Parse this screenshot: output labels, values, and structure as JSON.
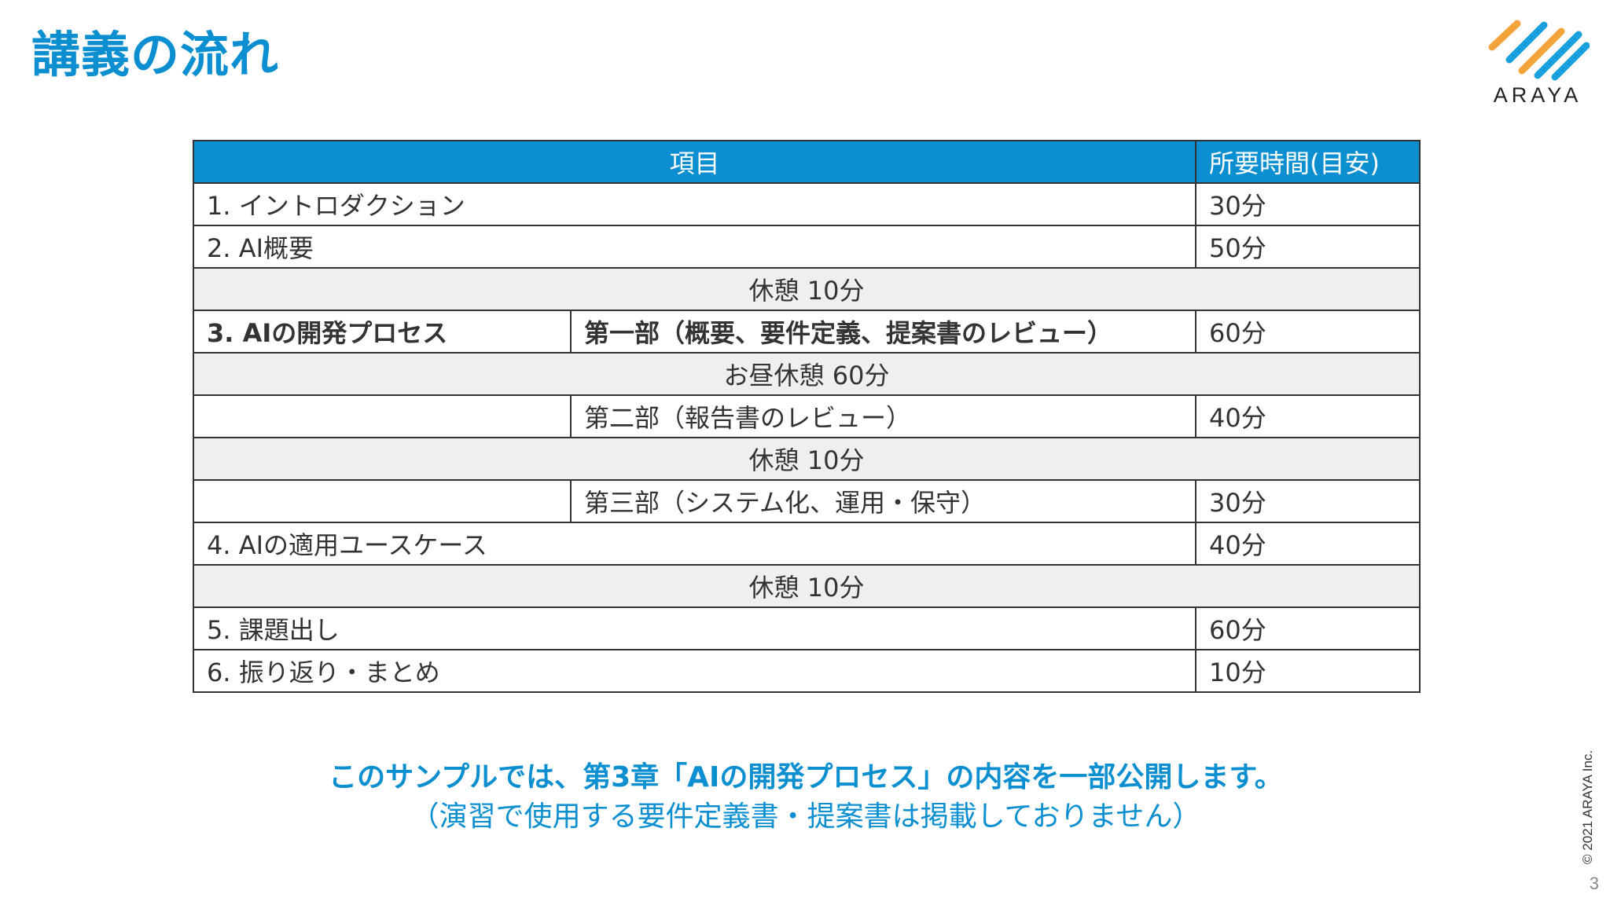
{
  "title": "講義の流れ",
  "logo": {
    "text": "ARAYA",
    "icon": "araya-stripes-logo",
    "colors": {
      "orange": "#f2a33a",
      "blue": "#1aa0dc"
    }
  },
  "colors": {
    "accent": "#0b8fd0",
    "highlight": "#e8201c",
    "break_row": "#efefef"
  },
  "table": {
    "headers": {
      "item": "項目",
      "time": "所要時間(目安)"
    },
    "rows": [
      {
        "item": "1. イントロダクション",
        "time": "30分"
      },
      {
        "item": "2. AI概要",
        "time": "50分"
      },
      {
        "break": "休憩 10分"
      },
      {
        "item": "3. AIの開発プロセス",
        "sub": "第一部（概要、要件定義、提案書のレビュー）",
        "time": "60分"
      },
      {
        "break": "お昼休憩 60分"
      },
      {
        "item": "",
        "sub": "第二部（報告書のレビュー）",
        "time": "40分"
      },
      {
        "break": "休憩 10分"
      },
      {
        "item": "",
        "sub": "第三部（システム化、運用・保守）",
        "time": "30分"
      },
      {
        "item": "4. AIの適用ユースケース",
        "time": "40分"
      },
      {
        "break": "休憩 10分"
      },
      {
        "item": "5. 課題出し",
        "time": "60分"
      },
      {
        "item": "6. 振り返り・まとめ",
        "time": "10分"
      }
    ]
  },
  "note": {
    "line1": "このサンプルでは、第3章「AIの開発プロセス」の内容を一部公開します。",
    "line2": "（演習で使用する要件定義書・提案書は掲載しておりません）"
  },
  "copyright": "© 2021 ARAYA Inc.",
  "page_number": "3"
}
